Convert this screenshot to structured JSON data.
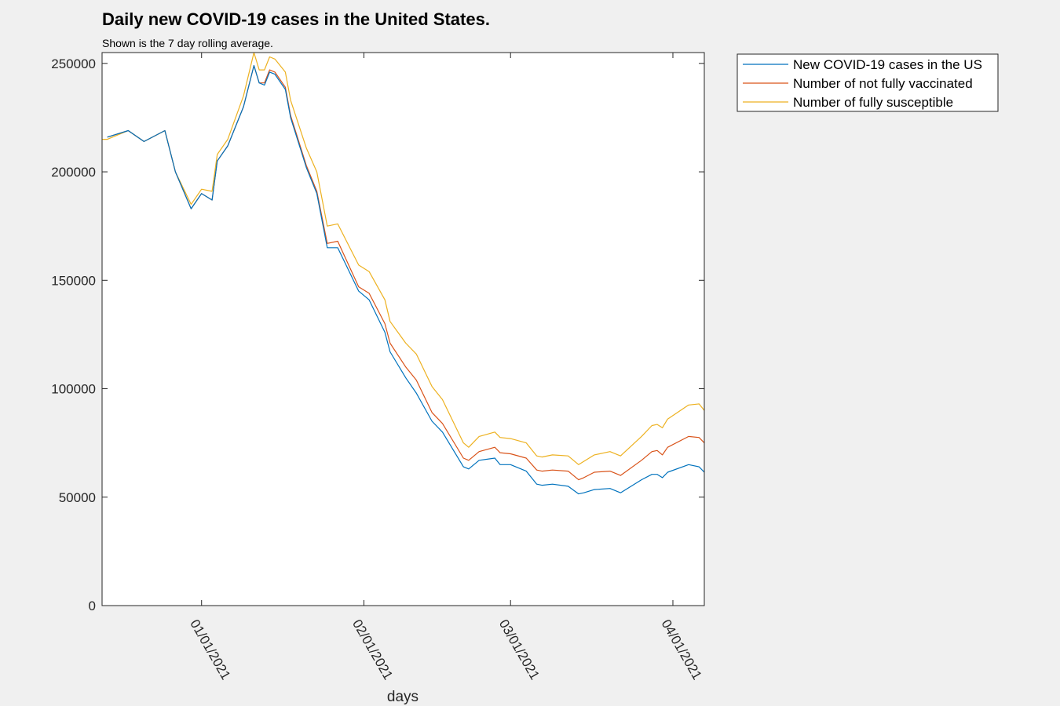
{
  "chart_data": {
    "type": "line",
    "title": "Daily new COVID-19 cases in the United States.",
    "subtitle": "Shown is the 7 day rolling average.",
    "xlabel": "days",
    "ylabel": "",
    "x_start": "2020-12-13",
    "x_end": "2021-04-07",
    "ylim": [
      0,
      255000
    ],
    "yticks": [
      0,
      50000,
      100000,
      150000,
      200000,
      250000
    ],
    "ytick_labels": [
      "0",
      "50000",
      "100000",
      "150000",
      "200000",
      "250000"
    ],
    "xticks": [
      {
        "date": "2021-01-01",
        "label": "01/01/2021"
      },
      {
        "date": "2021-02-01",
        "label": "02/01/2021"
      },
      {
        "date": "2021-03-01",
        "label": "03/01/2021"
      },
      {
        "date": "2021-04-01",
        "label": "04/01/2021"
      }
    ],
    "legend_position": "outside-top-right",
    "series": [
      {
        "name": "New COVID-19 cases in the US",
        "color": "#0072BD",
        "points": [
          [
            "2020-12-14",
            216000
          ],
          [
            "2020-12-18",
            219000
          ],
          [
            "2020-12-21",
            214000
          ],
          [
            "2020-12-25",
            219000
          ],
          [
            "2020-12-27",
            200000
          ],
          [
            "2020-12-30",
            183000
          ],
          [
            "2021-01-01",
            190000
          ],
          [
            "2021-01-03",
            187000
          ],
          [
            "2021-01-04",
            205000
          ],
          [
            "2021-01-06",
            212000
          ],
          [
            "2021-01-09",
            230000
          ],
          [
            "2021-01-11",
            249000
          ],
          [
            "2021-01-12",
            241000
          ],
          [
            "2021-01-13",
            240000
          ],
          [
            "2021-01-14",
            246000
          ],
          [
            "2021-01-15",
            245000
          ],
          [
            "2021-01-17",
            238000
          ],
          [
            "2021-01-18",
            225000
          ],
          [
            "2021-01-21",
            202000
          ],
          [
            "2021-01-23",
            190000
          ],
          [
            "2021-01-25",
            165000
          ],
          [
            "2021-01-27",
            165000
          ],
          [
            "2021-01-31",
            145000
          ],
          [
            "2021-02-02",
            141000
          ],
          [
            "2021-02-05",
            126000
          ],
          [
            "2021-02-06",
            117000
          ],
          [
            "2021-02-09",
            105000
          ],
          [
            "2021-02-11",
            98000
          ],
          [
            "2021-02-14",
            85000
          ],
          [
            "2021-02-16",
            80000
          ],
          [
            "2021-02-20",
            64000
          ],
          [
            "2021-02-21",
            63000
          ],
          [
            "2021-02-23",
            67000
          ],
          [
            "2021-02-26",
            68000
          ],
          [
            "2021-02-27",
            65000
          ],
          [
            "2021-03-01",
            65000
          ],
          [
            "2021-03-04",
            62000
          ],
          [
            "2021-03-06",
            56000
          ],
          [
            "2021-03-07",
            55500
          ],
          [
            "2021-03-09",
            56000
          ],
          [
            "2021-03-12",
            55000
          ],
          [
            "2021-03-14",
            51500
          ],
          [
            "2021-03-15",
            52000
          ],
          [
            "2021-03-17",
            53500
          ],
          [
            "2021-03-20",
            54000
          ],
          [
            "2021-03-22",
            52000
          ],
          [
            "2021-03-26",
            58000
          ],
          [
            "2021-03-28",
            60500
          ],
          [
            "2021-03-29",
            60500
          ],
          [
            "2021-03-30",
            59000
          ],
          [
            "2021-03-31",
            61500
          ],
          [
            "2021-04-04",
            65000
          ],
          [
            "2021-04-06",
            64000
          ],
          [
            "2021-04-07",
            61500
          ],
          [
            "2021-04-08",
            64000
          ],
          [
            "2021-04-10",
            64000
          ],
          [
            "2021-04-12",
            66000
          ]
        ]
      },
      {
        "name": "Number of not fully vaccinated",
        "color": "#D95319",
        "points": [
          [
            "2020-12-14",
            216000
          ],
          [
            "2020-12-18",
            219000
          ],
          [
            "2020-12-21",
            214000
          ],
          [
            "2020-12-25",
            219000
          ],
          [
            "2020-12-27",
            200000
          ],
          [
            "2020-12-30",
            183000
          ],
          [
            "2021-01-01",
            190000
          ],
          [
            "2021-01-03",
            187000
          ],
          [
            "2021-01-04",
            205000
          ],
          [
            "2021-01-06",
            212000
          ],
          [
            "2021-01-09",
            230000
          ],
          [
            "2021-01-11",
            249000
          ],
          [
            "2021-01-12",
            241000
          ],
          [
            "2021-01-13",
            241000
          ],
          [
            "2021-01-14",
            247000
          ],
          [
            "2021-01-15",
            246000
          ],
          [
            "2021-01-17",
            239000
          ],
          [
            "2021-01-18",
            226000
          ],
          [
            "2021-01-21",
            203000
          ],
          [
            "2021-01-23",
            191000
          ],
          [
            "2021-01-25",
            167000
          ],
          [
            "2021-01-27",
            168000
          ],
          [
            "2021-01-31",
            147000
          ],
          [
            "2021-02-02",
            144000
          ],
          [
            "2021-02-05",
            130000
          ],
          [
            "2021-02-06",
            121000
          ],
          [
            "2021-02-09",
            110000
          ],
          [
            "2021-02-11",
            104000
          ],
          [
            "2021-02-14",
            89000
          ],
          [
            "2021-02-16",
            84000
          ],
          [
            "2021-02-20",
            68000
          ],
          [
            "2021-02-21",
            67000
          ],
          [
            "2021-02-23",
            71000
          ],
          [
            "2021-02-26",
            73000
          ],
          [
            "2021-02-27",
            70500
          ],
          [
            "2021-03-01",
            70000
          ],
          [
            "2021-03-04",
            68000
          ],
          [
            "2021-03-06",
            62500
          ],
          [
            "2021-03-07",
            62000
          ],
          [
            "2021-03-09",
            62500
          ],
          [
            "2021-03-12",
            62000
          ],
          [
            "2021-03-14",
            58000
          ],
          [
            "2021-03-15",
            59000
          ],
          [
            "2021-03-17",
            61500
          ],
          [
            "2021-03-20",
            62000
          ],
          [
            "2021-03-22",
            60000
          ],
          [
            "2021-03-26",
            67000
          ],
          [
            "2021-03-28",
            71000
          ],
          [
            "2021-03-29",
            71500
          ],
          [
            "2021-03-30",
            69500
          ],
          [
            "2021-03-31",
            73000
          ],
          [
            "2021-04-04",
            78000
          ],
          [
            "2021-04-06",
            77500
          ],
          [
            "2021-04-07",
            75000
          ],
          [
            "2021-04-08",
            78000
          ],
          [
            "2021-04-10",
            79000
          ],
          [
            "2021-04-12",
            82000
          ]
        ]
      },
      {
        "name": "Number of fully susceptible",
        "color": "#EDB120",
        "points": [
          [
            "2020-12-07",
            183000
          ],
          [
            "2020-12-08",
            192000
          ],
          [
            "2020-12-09",
            194000
          ],
          [
            "2020-12-10",
            205000
          ],
          [
            "2020-12-11",
            215000
          ],
          [
            "2020-12-14",
            215000
          ],
          [
            "2020-12-18",
            219000
          ],
          [
            "2020-12-21",
            214000
          ],
          [
            "2020-12-25",
            219000
          ],
          [
            "2020-12-27",
            200000
          ],
          [
            "2020-12-30",
            185000
          ],
          [
            "2021-01-01",
            192000
          ],
          [
            "2021-01-03",
            191000
          ],
          [
            "2021-01-04",
            208000
          ],
          [
            "2021-01-06",
            215000
          ],
          [
            "2021-01-09",
            235000
          ],
          [
            "2021-01-11",
            255000
          ],
          [
            "2021-01-12",
            247000
          ],
          [
            "2021-01-13",
            247000
          ],
          [
            "2021-01-14",
            253000
          ],
          [
            "2021-01-15",
            252000
          ],
          [
            "2021-01-17",
            246000
          ],
          [
            "2021-01-18",
            233000
          ],
          [
            "2021-01-21",
            211000
          ],
          [
            "2021-01-23",
            200000
          ],
          [
            "2021-01-25",
            175000
          ],
          [
            "2021-01-27",
            176000
          ],
          [
            "2021-01-31",
            157000
          ],
          [
            "2021-02-02",
            154000
          ],
          [
            "2021-02-05",
            141000
          ],
          [
            "2021-02-06",
            131000
          ],
          [
            "2021-02-09",
            121000
          ],
          [
            "2021-02-11",
            116000
          ],
          [
            "2021-02-14",
            101000
          ],
          [
            "2021-02-16",
            95000
          ],
          [
            "2021-02-20",
            75000
          ],
          [
            "2021-02-21",
            73000
          ],
          [
            "2021-02-23",
            78000
          ],
          [
            "2021-02-26",
            80000
          ],
          [
            "2021-02-27",
            77500
          ],
          [
            "2021-03-01",
            77000
          ],
          [
            "2021-03-04",
            75000
          ],
          [
            "2021-03-06",
            69000
          ],
          [
            "2021-03-07",
            68500
          ],
          [
            "2021-03-09",
            69500
          ],
          [
            "2021-03-12",
            69000
          ],
          [
            "2021-03-14",
            65000
          ],
          [
            "2021-03-15",
            66500
          ],
          [
            "2021-03-17",
            69500
          ],
          [
            "2021-03-20",
            71000
          ],
          [
            "2021-03-22",
            69000
          ],
          [
            "2021-03-26",
            78000
          ],
          [
            "2021-03-28",
            83000
          ],
          [
            "2021-03-29",
            83500
          ],
          [
            "2021-03-30",
            82000
          ],
          [
            "2021-03-31",
            86000
          ],
          [
            "2021-04-04",
            92500
          ],
          [
            "2021-04-06",
            93000
          ],
          [
            "2021-04-07",
            90000
          ],
          [
            "2021-04-08",
            93000
          ],
          [
            "2021-04-10",
            94500
          ],
          [
            "2021-04-12",
            98500
          ]
        ]
      }
    ]
  }
}
